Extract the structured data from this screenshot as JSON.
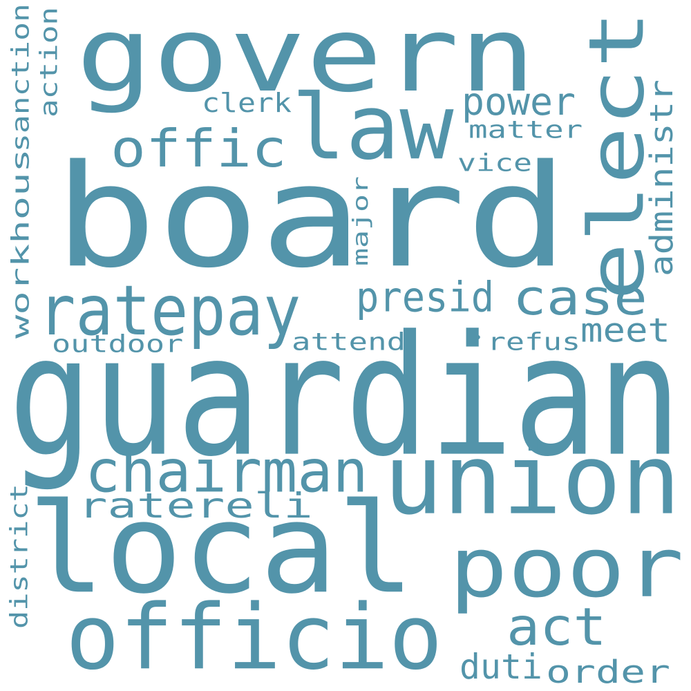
{
  "color": "#5394aa",
  "words": [
    "board",
    "guardian",
    "govern",
    "local",
    "union",
    "elect",
    "officio",
    "poor",
    "law",
    "ratepay",
    "chairman",
    "offic",
    "case",
    "act",
    "power",
    "presid",
    "ratereli",
    "meet",
    "administr",
    "workhous",
    "sanction",
    "action",
    "district",
    "clerk",
    "matter",
    "vice",
    "major",
    "outdoor",
    "attend",
    "refus",
    "duti",
    "order",
    "•"
  ]
}
